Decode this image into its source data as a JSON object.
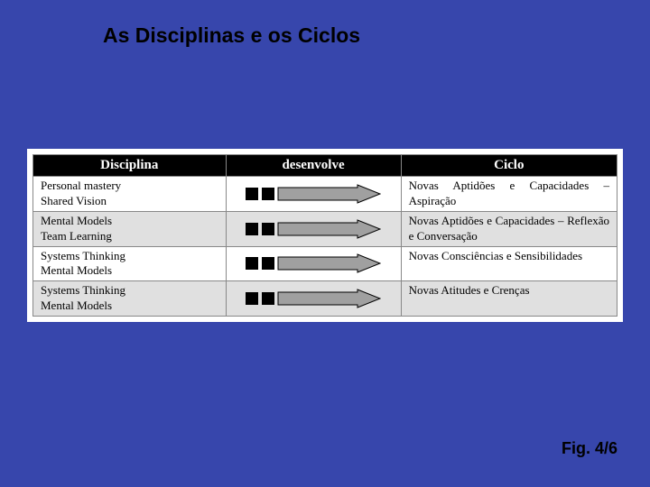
{
  "title": "As Disciplinas e os Ciclos",
  "fig_label": "Fig. 4/6",
  "colors": {
    "page_bg": "#3746ac",
    "table_bg": "#ffffff",
    "header_bg": "#000000",
    "header_text": "#ffffff",
    "row_shade": "#e0e0e0",
    "row_plain": "#ffffff",
    "border": "#888888",
    "title_text": "#000000",
    "arrow_fill": "#a0a0a0",
    "arrow_stroke": "#000000"
  },
  "typography": {
    "title_font": "Verdana",
    "title_size_pt": 17,
    "title_weight": "bold",
    "body_font": "Georgia",
    "body_size_pt": 10,
    "header_size_pt": 11
  },
  "table": {
    "columns": [
      {
        "key": "disciplina",
        "label": "Disciplina",
        "align": "center",
        "width_pct": 33
      },
      {
        "key": "desenvolve",
        "label": "desenvolve",
        "align": "center",
        "width_pct": 30
      },
      {
        "key": "ciclo",
        "label": "Ciclo",
        "align": "center",
        "width_pct": 37
      }
    ],
    "rows": [
      {
        "shaded": false,
        "disciplina": "Personal mastery\nShared Vision",
        "ciclo": "Novas Aptidões e Capacidades – Aspiração"
      },
      {
        "shaded": true,
        "disciplina": "Mental Models\nTeam Learning",
        "ciclo": "Novas Aptidões e Capacidades – Reflexão e Conversação"
      },
      {
        "shaded": false,
        "disciplina": "Systems Thinking\nMental Models",
        "ciclo": "Novas Consciências e Sensibilidades"
      },
      {
        "shaded": true,
        "disciplina": "Systems Thinking\nMental Models",
        "ciclo": "Novas Atitudes e Crenças"
      }
    ]
  },
  "arrow": {
    "width": 150,
    "height": 22,
    "handle_width": 14,
    "handle_gap": 4,
    "shaft_height": 14,
    "head_width": 26
  }
}
